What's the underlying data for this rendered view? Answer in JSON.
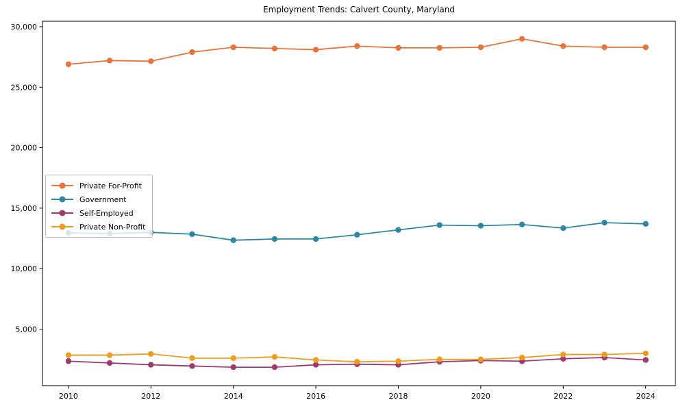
{
  "chart_data": {
    "type": "line",
    "title": "Employment Trends: Calvert County, Maryland",
    "xlabel": "",
    "ylabel": "",
    "x": [
      2010,
      2011,
      2012,
      2013,
      2014,
      2015,
      2016,
      2017,
      2018,
      2019,
      2020,
      2021,
      2022,
      2023,
      2024
    ],
    "x_ticks": [
      2010,
      2012,
      2014,
      2016,
      2018,
      2020,
      2022,
      2024
    ],
    "x_tick_labels": [
      "2010",
      "2012",
      "2014",
      "2016",
      "2018",
      "2020",
      "2022",
      "2024"
    ],
    "y_ticks": [
      5000,
      10000,
      15000,
      20000,
      25000,
      30000
    ],
    "y_tick_labels": [
      "5,000",
      "10,000",
      "15,000",
      "20,000",
      "25,000",
      "30,000"
    ],
    "xlim": [
      2009.37,
      2024.72
    ],
    "ylim": [
      326,
      30453
    ],
    "grid": false,
    "legend_position": "center-left",
    "axis_color": "#000000",
    "series": [
      {
        "name": "Private For-Profit",
        "color": "#e8743c",
        "values": [
          26900,
          27200,
          27150,
          27900,
          28300,
          28200,
          28100,
          28400,
          28250,
          28250,
          28300,
          29000,
          28400,
          28300,
          28300
        ]
      },
      {
        "name": "Government",
        "color": "#2e86a5",
        "values": [
          12950,
          12900,
          13000,
          12850,
          12350,
          12450,
          12450,
          12800,
          13200,
          13600,
          13550,
          13650,
          13350,
          13800,
          13700
        ]
      },
      {
        "name": "Self-Employed",
        "color": "#a13a6e",
        "values": [
          2350,
          2200,
          2050,
          1950,
          1850,
          1850,
          2050,
          2100,
          2050,
          2300,
          2400,
          2350,
          2550,
          2650,
          2450
        ]
      },
      {
        "name": "Private Non-Profit",
        "color": "#ef9d20",
        "values": [
          2850,
          2850,
          2950,
          2600,
          2600,
          2700,
          2450,
          2300,
          2350,
          2500,
          2500,
          2650,
          2900,
          2900,
          3000
        ]
      }
    ]
  }
}
